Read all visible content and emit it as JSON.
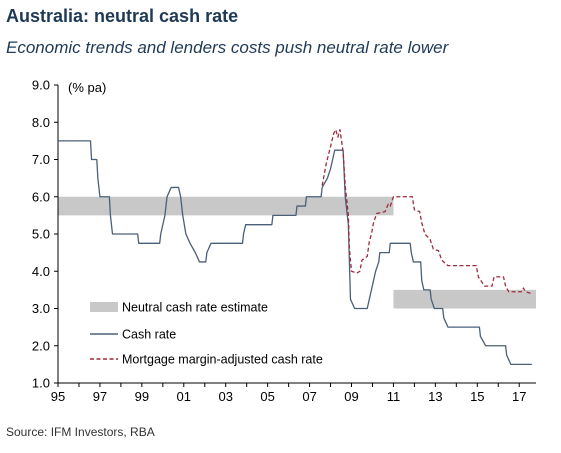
{
  "header": {
    "title": "Australia: neutral cash rate",
    "subtitle": "Economic trends and lenders costs push neutral rate lower"
  },
  "footer": {
    "source": "Source: IFM Investors, RBA"
  },
  "chart_data": {
    "type": "line",
    "title": "Australia: neutral cash rate",
    "subtitle": "Economic trends and lenders costs push neutral rate lower",
    "ylabel": "(% pa)",
    "xlabel": "",
    "xlim": [
      1995,
      2017.8
    ],
    "ylim": [
      1.0,
      9.0
    ],
    "x_ticks": [
      1995,
      1997,
      1999,
      2001,
      2003,
      2005,
      2007,
      2009,
      2011,
      2013,
      2015,
      2017
    ],
    "x_tick_labels": [
      "95",
      "97",
      "99",
      "01",
      "03",
      "05",
      "07",
      "09",
      "11",
      "13",
      "15",
      "17"
    ],
    "y_ticks": [
      1.0,
      2.0,
      3.0,
      4.0,
      5.0,
      6.0,
      7.0,
      8.0,
      9.0
    ],
    "y_tick_labels": [
      "1.0",
      "2.0",
      "3.0",
      "4.0",
      "5.0",
      "6.0",
      "7.0",
      "8.0",
      "9.0"
    ],
    "grid": false,
    "legend_position": "lower-left",
    "colors": {
      "band": "#c8c8c8",
      "cash": "#4a6079",
      "mortgage": "#9e2a3a",
      "title": "#1f3a56"
    },
    "bands": [
      {
        "name": "Neutral cash rate estimate",
        "segments": [
          {
            "x_start": 1995.0,
            "x_end": 2011.0,
            "y_low": 5.5,
            "y_high": 6.0
          },
          {
            "x_start": 2011.0,
            "x_end": 2017.8,
            "y_low": 3.0,
            "y_high": 3.5
          }
        ]
      }
    ],
    "series": [
      {
        "name": "Cash rate",
        "style": "solid",
        "points": [
          [
            1995.0,
            7.5
          ],
          [
            1996.55,
            7.5
          ],
          [
            1996.6,
            7.0
          ],
          [
            1996.85,
            7.0
          ],
          [
            1996.9,
            6.5
          ],
          [
            1997.0,
            6.0
          ],
          [
            1997.45,
            6.0
          ],
          [
            1997.5,
            5.5
          ],
          [
            1997.6,
            5.0
          ],
          [
            1998.8,
            5.0
          ],
          [
            1998.85,
            4.75
          ],
          [
            1999.85,
            4.75
          ],
          [
            1999.9,
            5.0
          ],
          [
            2000.1,
            5.5
          ],
          [
            2000.2,
            6.0
          ],
          [
            2000.4,
            6.25
          ],
          [
            2000.75,
            6.25
          ],
          [
            2000.85,
            6.0
          ],
          [
            2000.95,
            5.5
          ],
          [
            2001.1,
            5.0
          ],
          [
            2001.3,
            4.75
          ],
          [
            2001.55,
            4.5
          ],
          [
            2001.75,
            4.25
          ],
          [
            2002.05,
            4.25
          ],
          [
            2002.1,
            4.5
          ],
          [
            2002.3,
            4.75
          ],
          [
            2003.8,
            4.75
          ],
          [
            2003.85,
            5.0
          ],
          [
            2003.95,
            5.25
          ],
          [
            2005.2,
            5.25
          ],
          [
            2005.25,
            5.5
          ],
          [
            2006.35,
            5.5
          ],
          [
            2006.4,
            5.75
          ],
          [
            2006.8,
            5.75
          ],
          [
            2006.85,
            6.0
          ],
          [
            2007.55,
            6.0
          ],
          [
            2007.6,
            6.25
          ],
          [
            2007.85,
            6.5
          ],
          [
            2008.0,
            6.75
          ],
          [
            2008.1,
            7.0
          ],
          [
            2008.2,
            7.25
          ],
          [
            2008.6,
            7.25
          ],
          [
            2008.7,
            6.0
          ],
          [
            2008.85,
            5.25
          ],
          [
            2008.9,
            4.25
          ],
          [
            2008.95,
            3.25
          ],
          [
            2009.15,
            3.0
          ],
          [
            2009.75,
            3.0
          ],
          [
            2009.85,
            3.25
          ],
          [
            2009.95,
            3.5
          ],
          [
            2010.05,
            3.75
          ],
          [
            2010.15,
            4.0
          ],
          [
            2010.3,
            4.25
          ],
          [
            2010.35,
            4.5
          ],
          [
            2010.8,
            4.5
          ],
          [
            2010.85,
            4.75
          ],
          [
            2011.8,
            4.75
          ],
          [
            2011.85,
            4.5
          ],
          [
            2011.95,
            4.25
          ],
          [
            2012.3,
            4.25
          ],
          [
            2012.35,
            3.75
          ],
          [
            2012.45,
            3.5
          ],
          [
            2012.75,
            3.5
          ],
          [
            2012.8,
            3.25
          ],
          [
            2012.95,
            3.0
          ],
          [
            2013.35,
            3.0
          ],
          [
            2013.4,
            2.75
          ],
          [
            2013.6,
            2.5
          ],
          [
            2015.1,
            2.5
          ],
          [
            2015.15,
            2.25
          ],
          [
            2015.4,
            2.0
          ],
          [
            2016.35,
            2.0
          ],
          [
            2016.4,
            1.75
          ],
          [
            2016.6,
            1.5
          ],
          [
            2017.6,
            1.5
          ]
        ]
      },
      {
        "name": "Mortgage margin-adjusted cash rate",
        "style": "dashed",
        "points": [
          [
            2007.6,
            6.3
          ],
          [
            2007.7,
            6.6
          ],
          [
            2007.8,
            6.9
          ],
          [
            2008.0,
            7.35
          ],
          [
            2008.15,
            7.7
          ],
          [
            2008.25,
            7.8
          ],
          [
            2008.35,
            7.6
          ],
          [
            2008.45,
            7.8
          ],
          [
            2008.6,
            7.2
          ],
          [
            2008.7,
            6.3
          ],
          [
            2008.85,
            5.5
          ],
          [
            2008.9,
            4.6
          ],
          [
            2009.0,
            4.0
          ],
          [
            2009.25,
            3.95
          ],
          [
            2009.4,
            4.0
          ],
          [
            2009.5,
            4.3
          ],
          [
            2009.75,
            4.4
          ],
          [
            2009.85,
            4.8
          ],
          [
            2009.95,
            5.0
          ],
          [
            2010.05,
            5.3
          ],
          [
            2010.2,
            5.55
          ],
          [
            2010.6,
            5.6
          ],
          [
            2010.75,
            5.8
          ],
          [
            2010.85,
            5.75
          ],
          [
            2011.0,
            6.0
          ],
          [
            2011.9,
            6.0
          ],
          [
            2012.0,
            5.65
          ],
          [
            2012.25,
            5.6
          ],
          [
            2012.35,
            5.3
          ],
          [
            2012.5,
            5.0
          ],
          [
            2012.75,
            4.85
          ],
          [
            2012.9,
            4.6
          ],
          [
            2013.15,
            4.55
          ],
          [
            2013.3,
            4.3
          ],
          [
            2013.6,
            4.15
          ],
          [
            2014.95,
            4.15
          ],
          [
            2015.05,
            3.85
          ],
          [
            2015.35,
            3.6
          ],
          [
            2015.7,
            3.6
          ],
          [
            2015.8,
            3.85
          ],
          [
            2016.25,
            3.85
          ],
          [
            2016.35,
            3.6
          ],
          [
            2016.5,
            3.45
          ],
          [
            2017.1,
            3.45
          ],
          [
            2017.2,
            3.55
          ],
          [
            2017.3,
            3.45
          ],
          [
            2017.6,
            3.4
          ]
        ]
      }
    ],
    "legend": [
      {
        "label": "Neutral cash rate estimate",
        "kind": "band"
      },
      {
        "label": "Cash rate",
        "kind": "solid"
      },
      {
        "label": "Mortgage margin-adjusted cash rate",
        "kind": "dashed"
      }
    ]
  }
}
